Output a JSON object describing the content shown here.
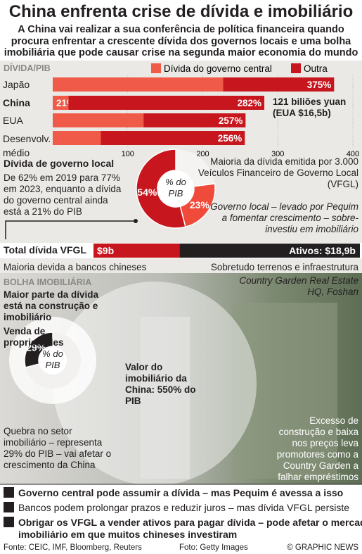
{
  "header": {
    "title": "China enfrenta crise de dívida e imobiliário",
    "subtitle": "A China vai realizar a sua conferência de política financeira quando procura enfrentar a crescente dívida dos governos locais e uma bolha imobiliária que pode causar crise na segunda maior economia do mundo"
  },
  "chart_data": [
    {
      "type": "bar",
      "title": "DÍVIDA/PIB",
      "categories": [
        "Japão",
        "China",
        "EUA",
        "Desenvolv. médio"
      ],
      "series": [
        {
          "name": "Dívida do governo central",
          "color": "#f05a48",
          "values": [
            227,
            21,
            121,
            64
          ],
          "value_labels": [
            null,
            "21%",
            null,
            null
          ]
        },
        {
          "name": "Outra",
          "color": "#c8161e",
          "values": [
            148,
            261,
            136,
            192
          ]
        }
      ],
      "totals": [
        375,
        282,
        257,
        256
      ],
      "total_labels": [
        "375%",
        "282%",
        "257%",
        "256%"
      ],
      "xlim": [
        0,
        400
      ],
      "xticks": [
        100,
        200,
        300,
        400
      ],
      "grid": true,
      "annotation": "121 biliões yuan (EUA $16,5b)"
    },
    {
      "type": "pie",
      "title": "Dívida de governo local",
      "subtitle": "De 62% em 2019 para 77% em 2023, enquanto a dívida do governo central ainda está a 21% do PIB",
      "center_label": "% do PIB",
      "values": [
        54,
        23
      ],
      "value_labels": [
        "54%",
        "23%"
      ],
      "colors": [
        "#c8161e",
        "#ef4a3a"
      ],
      "ylim": [
        0,
        100
      ],
      "notes": [
        "Maioria da dívida emitida por 3.000 Veículos Financeiro de Governo Local (VFGL)",
        "Governo local – levado por Pequim a fomentar crescimento – sobre-investiu em imobiliário"
      ]
    },
    {
      "type": "bar",
      "title": "Total dívida VFGL",
      "values": [
        9,
        18.9
      ],
      "value_labels": [
        "$9b",
        "Ativos: $18,9b"
      ],
      "colors": [
        "#c8161e",
        "#231f20"
      ],
      "notes": [
        "Maioria devida a bancos chineses",
        "Sobretudo terrenos e infraestrutura"
      ]
    },
    {
      "type": "pie",
      "title": "BOLHA IMOBILIÁRIA",
      "subtitle": "Maior parte da dívida está na construção e imobiliário",
      "label": "Venda de propriedades",
      "center_label": "% do PIB",
      "values": [
        29
      ],
      "value_labels": [
        "29%"
      ],
      "colors": [
        "#231f20"
      ],
      "ylim": [
        0,
        100
      ],
      "annotation": "Valor do imobiliário da China: 550% do PIB",
      "note": "Quebra no setor imobiliário – representa 29% do PIB – vai afetar o crescimento da China"
    }
  ],
  "photo": {
    "caption": "Country Garden Real Estate HQ, Foshan",
    "note": "Excesso de construção e baixa nos preços leva promotores como a Country Garden a falhar empréstimos"
  },
  "list": [
    {
      "number": 1,
      "text": "Governo central pode assumir a dívida – mas Pequim é avessa a isso"
    },
    {
      "number": 2,
      "text": "Bancos podem prolongar prazos e reduzir juros – mas dívida VFGL persiste"
    },
    {
      "number": 3,
      "text": "Obrigar os VFGL a vender ativos para pagar dívida – pode afetar o mercado imobiliário em que muitos chineses investiram"
    }
  ],
  "footer": {
    "source": "Fonte: CEIC, IMF, Bloomberg, Reuters",
    "photo": "Foto: Getty Images",
    "credit": "© GRAPHIC NEWS"
  }
}
